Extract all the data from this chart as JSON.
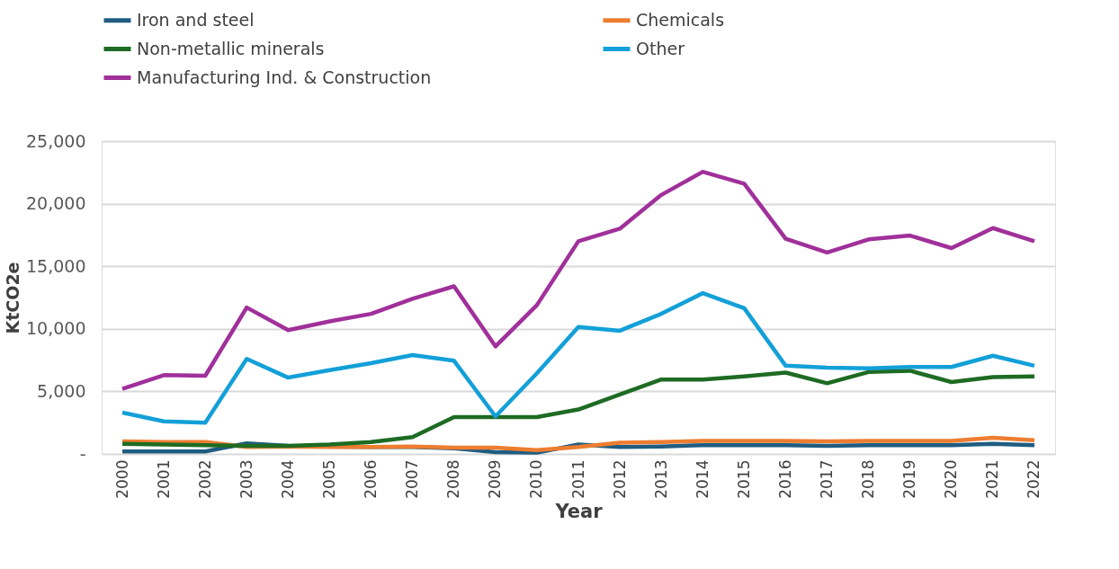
{
  "chart_data": {
    "type": "line",
    "xlabel": "Year",
    "ylabel": "KtCO2e",
    "categories": [
      "2000",
      "2001",
      "2002",
      "2003",
      "2004",
      "2005",
      "2006",
      "2007",
      "2008",
      "2009",
      "2010",
      "2011",
      "2012",
      "2013",
      "2014",
      "2015",
      "2016",
      "2017",
      "2018",
      "2019",
      "2020",
      "2021",
      "2022"
    ],
    "series": [
      {
        "name": "Iron and steel",
        "color": "#1f5c80",
        "values": [
          200,
          200,
          200,
          850,
          650,
          600,
          550,
          550,
          450,
          150,
          100,
          750,
          550,
          600,
          700,
          700,
          700,
          650,
          700,
          700,
          700,
          800,
          700
        ]
      },
      {
        "name": "Chemicals",
        "color": "#ed7d31",
        "values": [
          1000,
          950,
          950,
          550,
          600,
          550,
          550,
          600,
          500,
          500,
          300,
          550,
          900,
          950,
          1050,
          1050,
          1050,
          1000,
          1050,
          1050,
          1050,
          1300,
          1100
        ]
      },
      {
        "name": "Non-metallic minerals",
        "color": "#1e6b23",
        "values": [
          800,
          750,
          700,
          650,
          650,
          750,
          950,
          1350,
          2950,
          2950,
          2950,
          3550,
          4750,
          5950,
          5950,
          6200,
          6500,
          5650,
          6550,
          6650,
          5750,
          6150,
          6200
        ]
      },
      {
        "name": "Other",
        "color": "#13a0d8",
        "values": [
          3300,
          2600,
          2500,
          7600,
          6100,
          6700,
          7250,
          7900,
          7450,
          3000,
          6450,
          10150,
          9850,
          11200,
          12850,
          11650,
          7050,
          6900,
          6850,
          6950,
          6950,
          7850,
          7050
        ]
      },
      {
        "name": "Manufacturing Ind. & Construction",
        "color": "#a0309a",
        "values": [
          5200,
          6300,
          6250,
          11700,
          9900,
          10600,
          11200,
          12400,
          13400,
          8600,
          11900,
          17000,
          18000,
          20700,
          22550,
          21600,
          17200,
          16100,
          17150,
          17450,
          16450,
          18050,
          17000
        ]
      }
    ],
    "ylim": [
      0,
      25000
    ],
    "yticks": [
      {
        "value": 0,
        "label": "-"
      },
      {
        "value": 5000,
        "label": "5,000"
      },
      {
        "value": 10000,
        "label": "10,000"
      },
      {
        "value": 15000,
        "label": "15,000"
      },
      {
        "value": 20000,
        "label": "20,000"
      },
      {
        "value": 25000,
        "label": "25,000"
      }
    ],
    "grid": "y",
    "legend": "top left",
    "marker": "none",
    "line_style": "solid"
  }
}
